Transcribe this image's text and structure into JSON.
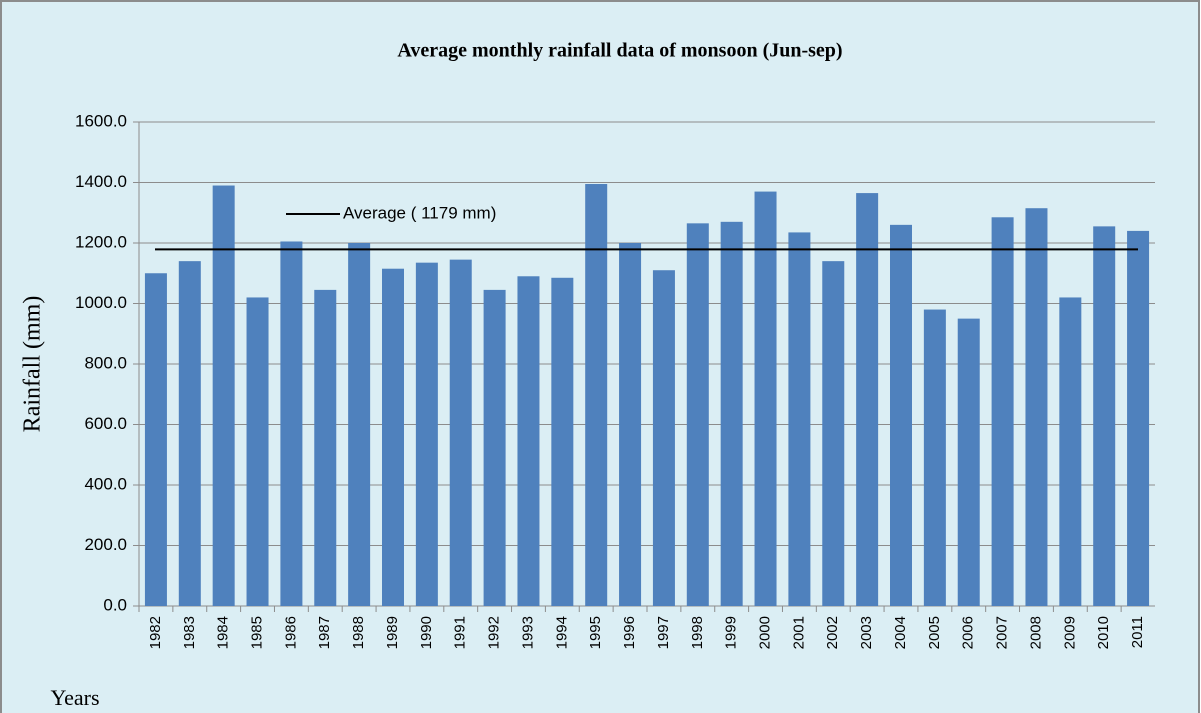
{
  "chart_data": {
    "type": "bar",
    "title": "Average monthly rainfall data of monsoon (Jun-sep)",
    "x_label": "Years",
    "y_label": "Rainfall (mm)",
    "categories": [
      "1982",
      "1983",
      "1984",
      "1985",
      "1986",
      "1987",
      "1988",
      "1989",
      "1990",
      "1991",
      "1992",
      "1993",
      "1994",
      "1995",
      "1996",
      "1997",
      "1998",
      "1999",
      "2000",
      "2001",
      "2002",
      "2003",
      "2004",
      "2005",
      "2006",
      "2007",
      "2008",
      "2009",
      "2010",
      "2011"
    ],
    "values": [
      1100,
      1140,
      1390,
      1020,
      1205,
      1045,
      1200,
      1115,
      1135,
      1145,
      1045,
      1090,
      1085,
      1395,
      1200,
      1110,
      1265,
      1270,
      1370,
      1235,
      1140,
      1365,
      1260,
      980,
      950,
      1285,
      1315,
      1020,
      1255,
      1240
    ],
    "color": "#4f81bd",
    "average": 1179,
    "average_label": "Average ( 1179 mm)",
    "ylim": [
      0,
      1600
    ],
    "yticks": [
      {
        "value": 0,
        "label": "0.0"
      },
      {
        "value": 200,
        "label": "200.0"
      },
      {
        "value": 400,
        "label": "400.0"
      },
      {
        "value": 600,
        "label": "600.0"
      },
      {
        "value": 800,
        "label": "800.0"
      },
      {
        "value": 1000,
        "label": "1000.0"
      },
      {
        "value": 1200,
        "label": "1200.0"
      },
      {
        "value": 1400,
        "label": "1400.0"
      },
      {
        "value": 1600,
        "label": "1600.0"
      }
    ],
    "grid": true
  }
}
